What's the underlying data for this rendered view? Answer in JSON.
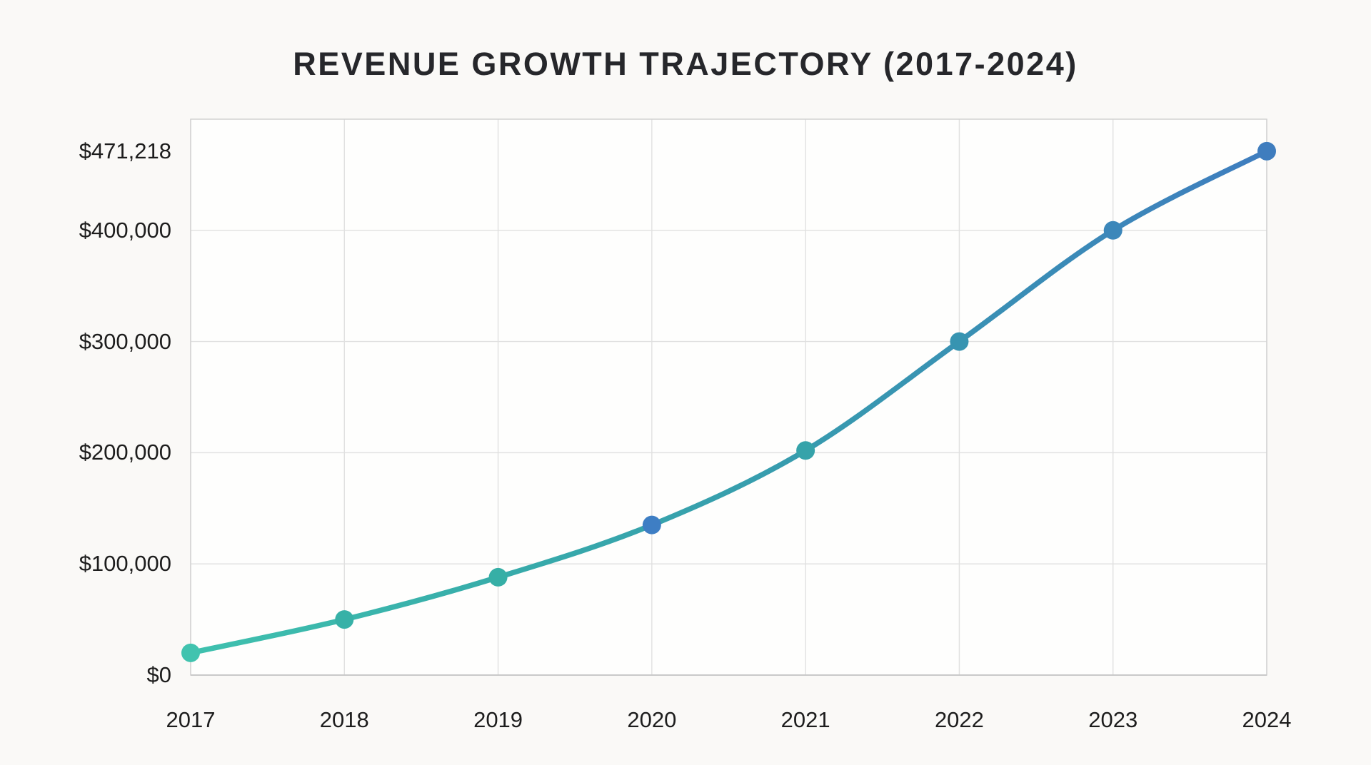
{
  "page": {
    "background_color": "#faf9f7",
    "plot_background_color": "#fefefd"
  },
  "chart_data": {
    "type": "line",
    "title": "REVENUE GROWTH TRAJECTORY (2017-2024)",
    "xlabel": "",
    "ylabel": "",
    "categories": [
      "2017",
      "2018",
      "2019",
      "2020",
      "2021",
      "2022",
      "2023",
      "2024"
    ],
    "series": [
      {
        "name": "Revenue",
        "values": [
          20000,
          50000,
          88000,
          135000,
          202000,
          300000,
          400000,
          471218
        ]
      }
    ],
    "ylim": [
      0,
      500000
    ],
    "grid": true,
    "legend": "none",
    "y_ticks": [
      {
        "value": 0,
        "label": "$0",
        "gridline": false
      },
      {
        "value": 100000,
        "label": "$100,000",
        "gridline": true
      },
      {
        "value": 200000,
        "label": "$200,000",
        "gridline": true
      },
      {
        "value": 300000,
        "label": "$300,000",
        "gridline": true
      },
      {
        "value": 400000,
        "label": "$400,000",
        "gridline": true
      },
      {
        "value": 471218,
        "label": "$471,218",
        "gridline": false
      }
    ],
    "colors": {
      "line_gradient": [
        {
          "offset": 0,
          "color": "#3fc1ae"
        },
        {
          "offset": 0.3,
          "color": "#37abaa"
        },
        {
          "offset": 0.55,
          "color": "#379cae"
        },
        {
          "offset": 0.78,
          "color": "#3a8db6"
        },
        {
          "offset": 1,
          "color": "#3f7dbf"
        }
      ],
      "point_colors": [
        "#41c3af",
        "#37b1a7",
        "#36afa6",
        "#3e7ec4",
        "#36a3aa",
        "#3794b1",
        "#3c87ba",
        "#3f7dbe"
      ],
      "grid_color": "#e0e0e0",
      "border_color": "#d2d2d2",
      "axis_color": "#c9c9c9",
      "title_color": "#26272b",
      "tick_label_color": "#1d1d1d"
    }
  }
}
